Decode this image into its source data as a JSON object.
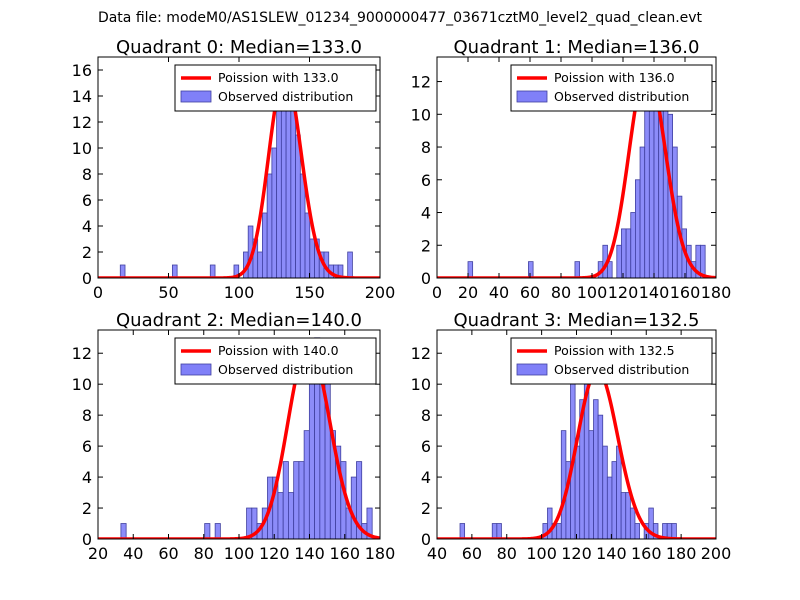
{
  "suptitle": "Data file: modeM0/AS1SLEW_01234_9000000477_03671cztM0_level2_quad_clean.evt",
  "chart_data": [
    {
      "type": "bar",
      "title": "Quadrant 0: Median=133.0",
      "median": 133.0,
      "xlim": [
        0,
        200
      ],
      "ylim": [
        0,
        17
      ],
      "xticks": [
        0,
        50,
        100,
        150,
        200
      ],
      "yticks": [
        0,
        2,
        4,
        6,
        8,
        10,
        12,
        14,
        16
      ],
      "bin_start": 15.8,
      "bin_width": 3.36,
      "counts": [
        1,
        0,
        0,
        0,
        0,
        0,
        0,
        0,
        0,
        0,
        0,
        1,
        0,
        0,
        0,
        0,
        0,
        0,
        0,
        1,
        0,
        0,
        0,
        0,
        1,
        0,
        2,
        4,
        3,
        2,
        5,
        8,
        10,
        14,
        16,
        13,
        15,
        11,
        8,
        5,
        3,
        3,
        2,
        2,
        1,
        1,
        1,
        0,
        2
      ],
      "legend": [
        "Poission with 133.0",
        "Observed distribution"
      ]
    },
    {
      "type": "bar",
      "title": "Quadrant 1: Median=136.0",
      "median": 136.0,
      "xlim": [
        0,
        180
      ],
      "ylim": [
        0,
        13.5
      ],
      "xticks": [
        0,
        20,
        40,
        60,
        80,
        100,
        120,
        140,
        160,
        180
      ],
      "yticks": [
        0,
        2,
        4,
        6,
        8,
        10,
        12
      ],
      "bin_start": 20.0,
      "bin_width": 3.0,
      "counts": [
        1,
        0,
        0,
        0,
        0,
        0,
        0,
        0,
        0,
        0,
        0,
        0,
        0,
        1,
        0,
        0,
        0,
        0,
        0,
        0,
        0,
        0,
        0,
        1,
        0,
        0,
        0,
        0,
        1,
        2,
        1,
        0,
        2,
        3,
        3,
        4,
        6,
        8,
        11,
        12,
        11,
        13,
        12,
        10,
        8,
        5,
        3,
        2,
        1,
        2,
        2
      ],
      "legend": [
        "Poission with 136.0",
        "Observed distribution"
      ]
    },
    {
      "type": "bar",
      "title": "Quadrant 2: Median=140.0",
      "median": 140.0,
      "xlim": [
        20,
        180
      ],
      "ylim": [
        0,
        13.5
      ],
      "xticks": [
        20,
        40,
        60,
        80,
        100,
        120,
        140,
        160,
        180
      ],
      "yticks": [
        0,
        2,
        4,
        6,
        8,
        10,
        12
      ],
      "bin_start": 33.0,
      "bin_width": 2.97,
      "counts": [
        1,
        0,
        0,
        0,
        0,
        0,
        0,
        0,
        0,
        0,
        0,
        0,
        0,
        0,
        0,
        0,
        1,
        0,
        1,
        0,
        0,
        0,
        0,
        0,
        2,
        2,
        1,
        2,
        4,
        4,
        3,
        5,
        3,
        5,
        5,
        7,
        12,
        13,
        11,
        11,
        7,
        6,
        5,
        2,
        4,
        5,
        1,
        2
      ],
      "legend": [
        "Poission with 140.0",
        "Observed distribution"
      ]
    },
    {
      "type": "bar",
      "title": "Quadrant 3: Median=132.5",
      "median": 132.5,
      "xlim": [
        40,
        200
      ],
      "ylim": [
        0,
        13.5
      ],
      "xticks": [
        40,
        60,
        80,
        100,
        120,
        140,
        160,
        180,
        200
      ],
      "yticks": [
        0,
        2,
        4,
        6,
        8,
        10,
        12
      ],
      "bin_start": 53.2,
      "bin_width": 2.64,
      "counts": [
        1,
        0,
        0,
        0,
        0,
        0,
        0,
        1,
        1,
        0,
        0,
        0,
        0,
        0,
        0,
        0,
        0,
        0,
        1,
        2,
        1,
        1,
        7,
        5,
        13,
        6,
        9,
        10,
        7,
        9,
        8,
        6,
        4,
        5,
        6,
        3,
        3,
        2,
        1,
        0,
        1,
        2,
        1,
        0,
        1,
        1,
        1
      ],
      "legend": [
        "Poission with 132.5",
        "Observed distribution"
      ]
    }
  ],
  "colors": {
    "bar_fill": "#8080f8",
    "bar_edge": "#4040a0",
    "curve": "#ff0000"
  }
}
